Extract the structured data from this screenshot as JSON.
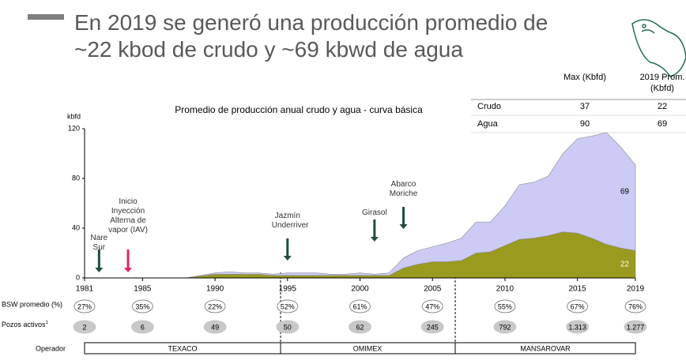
{
  "header": {
    "title": "En 2019 se generó una producción promedio de ~22 kbod de crudo y ~69 kbwd de agua"
  },
  "summary_table": {
    "columns": [
      "",
      "Max (Kbfd)",
      "2019 Prom. (Kbfd)"
    ],
    "rows": [
      [
        "Crudo",
        "37",
        "22"
      ],
      [
        "Agua",
        "90",
        "69"
      ]
    ]
  },
  "chart_data": {
    "type": "area",
    "title": "Promedio de producción anual crudo y agua - curva básica",
    "y_label": "kbfd",
    "x": [
      1981,
      1982,
      1983,
      1984,
      1985,
      1986,
      1987,
      1988,
      1989,
      1990,
      1991,
      1992,
      1993,
      1994,
      1995,
      1996,
      1997,
      1998,
      1999,
      2000,
      2001,
      2002,
      2003,
      2004,
      2005,
      2006,
      2007,
      2008,
      2009,
      2010,
      2011,
      2012,
      2013,
      2014,
      2015,
      2016,
      2017,
      2018,
      2019
    ],
    "series": [
      {
        "name": "Crudo",
        "color": "#9a9a1f",
        "values": [
          0,
          0,
          0,
          0,
          0,
          0,
          0,
          0,
          1.5,
          3,
          3,
          3,
          3,
          2,
          2,
          2,
          2,
          2,
          2,
          2,
          2,
          2,
          8,
          11,
          13,
          13,
          14,
          20,
          21,
          26,
          31,
          32,
          34,
          37,
          36,
          32,
          27,
          24,
          22
        ]
      },
      {
        "name": "Agua",
        "color": "#cccbf5",
        "values": [
          0,
          0,
          0,
          0,
          0,
          0,
          0,
          0,
          0.5,
          1,
          2,
          1,
          1,
          1,
          2,
          2,
          2,
          1,
          1,
          2,
          1,
          2,
          8,
          11,
          12,
          15,
          18,
          25,
          24,
          32,
          44,
          45,
          48,
          63,
          76,
          82,
          90,
          81,
          69
        ]
      }
    ],
    "xlim": [
      1981,
      2019
    ],
    "xticks": [
      1981,
      1985,
      1990,
      1995,
      2000,
      2005,
      2010,
      2015,
      2019
    ],
    "ylim": [
      0,
      120
    ],
    "yticks": [
      0,
      40,
      80,
      120
    ],
    "annotations": [
      {
        "text": "Nare Sur",
        "x": 1982,
        "color": "#1f4e3d"
      },
      {
        "text": "Inicio Inyección Alterna de vapor (IAV)",
        "x": 1984,
        "color": "#e0245e"
      },
      {
        "text": "Jazmín Underriver",
        "x": 1995,
        "color": "#1f4e3d"
      },
      {
        "text": "Girasol",
        "x": 2001,
        "color": "#1f4e3d"
      },
      {
        "text": "Abarco Moriche",
        "x": 2003,
        "color": "#1f4e3d"
      }
    ]
  },
  "table": {
    "bsw_label": "BSW promedio (%)",
    "bsw": [
      "27%",
      "35%",
      "22%",
      "52%",
      "61%",
      "47%",
      "55%",
      "67%",
      "76%"
    ],
    "pozos_label": "Pozos activos",
    "pozos_note": "1",
    "pozos": [
      "2",
      "6",
      "49",
      "50",
      "62",
      "245",
      "792",
      "1.313",
      "1.277"
    ],
    "operador_label": "Operador",
    "operadores": [
      "TEXACO",
      "OMIMEX",
      "MANSAROVAR"
    ]
  }
}
